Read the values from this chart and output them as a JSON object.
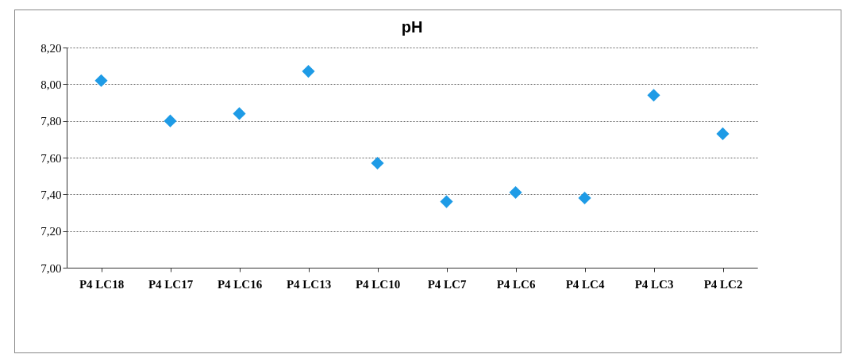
{
  "chart_data": {
    "type": "scatter",
    "title": "pH",
    "categories": [
      "P4 LC18",
      "P4 LC17",
      "P4 LC16",
      "P4 LC13",
      "P4 LC10",
      "P4 LC7",
      "P4 LC6",
      "P4 LC4",
      "P4 LC3",
      "P4 LC2"
    ],
    "values": [
      8.02,
      7.8,
      7.84,
      8.07,
      7.57,
      7.36,
      7.41,
      7.38,
      7.94,
      7.73
    ],
    "color": "#1e9be6",
    "marker": "diamond",
    "ylim": [
      7.0,
      8.2
    ],
    "yticks": [
      {
        "value": 7.0,
        "label": "7,00"
      },
      {
        "value": 7.2,
        "label": "7,20"
      },
      {
        "value": 7.4,
        "label": "7,40"
      },
      {
        "value": 7.6,
        "label": "7,60"
      },
      {
        "value": 7.8,
        "label": "7,80"
      },
      {
        "value": 8.0,
        "label": "8,00"
      },
      {
        "value": 8.2,
        "label": "8,20"
      }
    ],
    "grid": "y"
  }
}
